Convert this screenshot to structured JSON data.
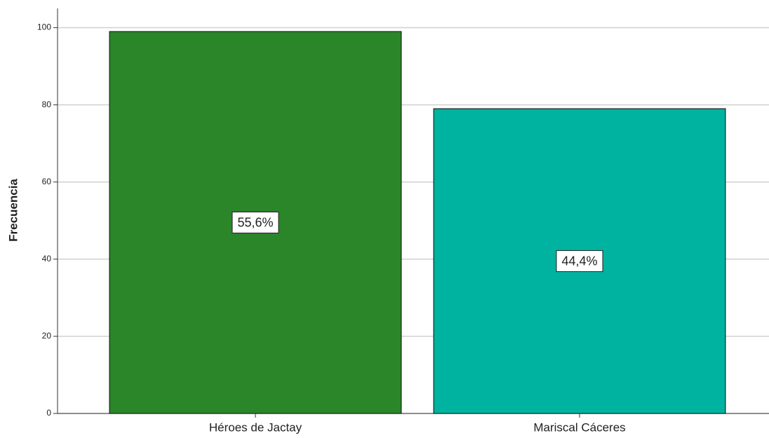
{
  "chart_data": {
    "type": "bar",
    "y_label": "Frecuencia",
    "categories": [
      "Héroes de Jactay",
      "Mariscal Cáceres"
    ],
    "values": [
      99,
      79
    ],
    "colors": [
      "#2a8629",
      "#00b3a0"
    ],
    "percentages": [
      {
        "value": 55.6,
        "label": "55,6%"
      },
      {
        "value": 44.4,
        "label": "44,4%"
      }
    ],
    "ylim": [
      0,
      105
    ],
    "yticks": [
      0,
      20,
      40,
      60,
      80,
      100
    ],
    "grid": true
  }
}
